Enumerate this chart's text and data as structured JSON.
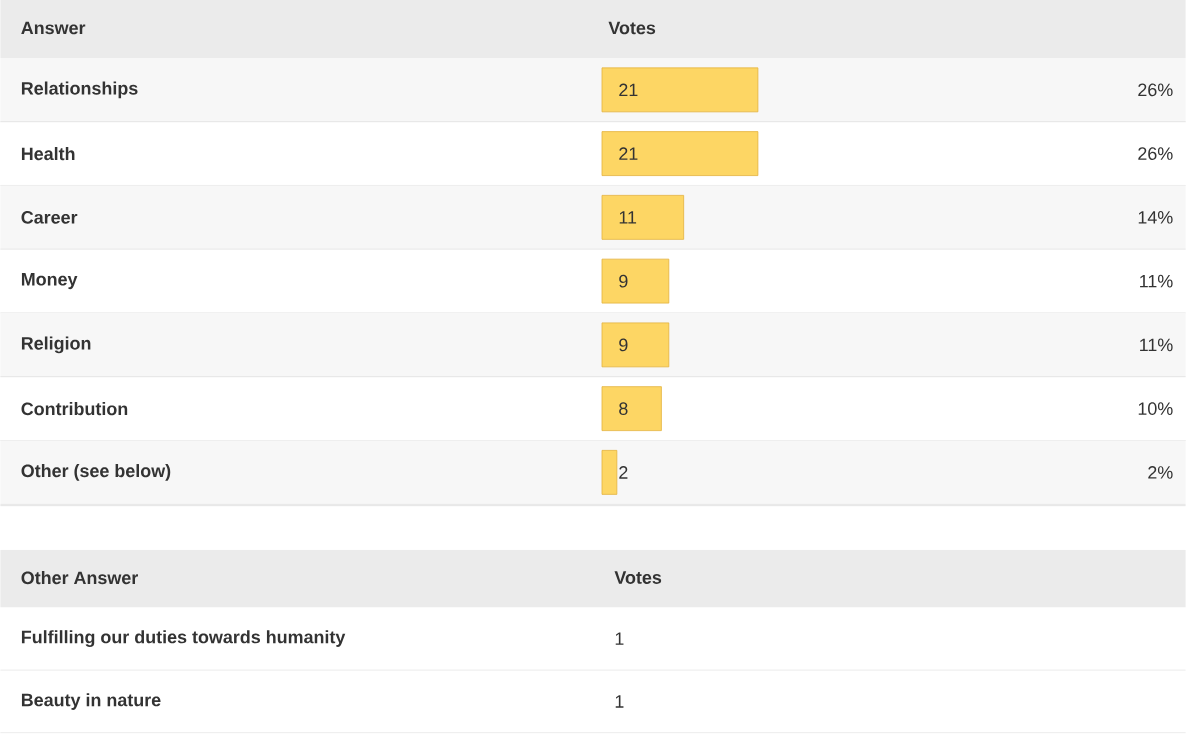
{
  "chart_data": {
    "type": "bar",
    "orientation": "horizontal",
    "ylabel": "Answer",
    "xlabel": "Votes",
    "categories": [
      "Relationships",
      "Health",
      "Career",
      "Money",
      "Religion",
      "Contribution",
      "Other (see below)"
    ],
    "values": [
      21,
      21,
      11,
      9,
      9,
      8,
      2
    ],
    "color": "#fdd664",
    "data_labels": true,
    "annotations": [
      "26%",
      "26%",
      "14%",
      "11%",
      "11%",
      "10%",
      "2%",
      "Other Answer",
      "Votes",
      "Fulfilling our duties towards humanity",
      "1",
      "Beauty in nature",
      "1"
    ]
  }
}
